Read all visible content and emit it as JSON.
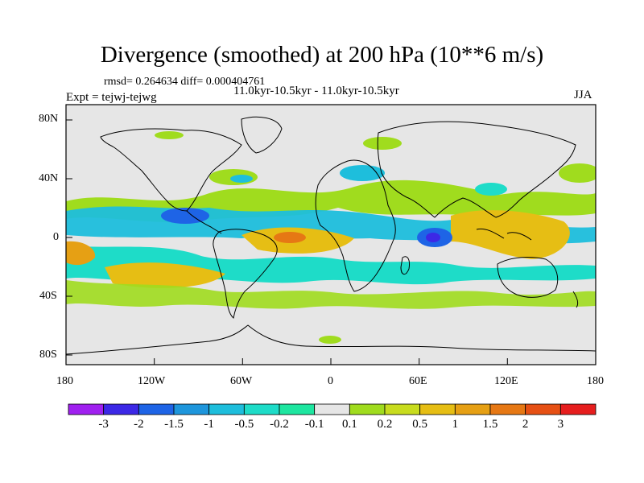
{
  "title": "Divergence (smoothed) at 200 hPa (10**6 m/s)",
  "stats_line": "rmsd= 0.264634 diff= 0.000404761",
  "experiment_label": "Expt = tejwj-tejwg",
  "period_label": "11.0kyr-10.5kyr - 11.0kyr-10.5kyr",
  "season_label": "JJA",
  "lat_ticks": [
    "80N",
    "40N",
    "0",
    "40S",
    "80S"
  ],
  "lon_ticks": [
    "180",
    "120W",
    "60W",
    "0",
    "60E",
    "120E",
    "180"
  ],
  "colorbar": {
    "labels": [
      "-3",
      "-2",
      "-1.5",
      "-1",
      "-0.5",
      "-0.2",
      "-0.1",
      "0.1",
      "0.2",
      "0.5",
      "1",
      "1.5",
      "2",
      "3"
    ],
    "colors": [
      "#a020f0",
      "#3c28e6",
      "#1e64e6",
      "#1e96dc",
      "#1ebedc",
      "#1edcc8",
      "#1ee6a0",
      "#e6e6e6",
      "#a0dc1e",
      "#c8dc1e",
      "#e6be14",
      "#e6a014",
      "#e67814",
      "#e65014",
      "#e61e1e"
    ]
  }
}
